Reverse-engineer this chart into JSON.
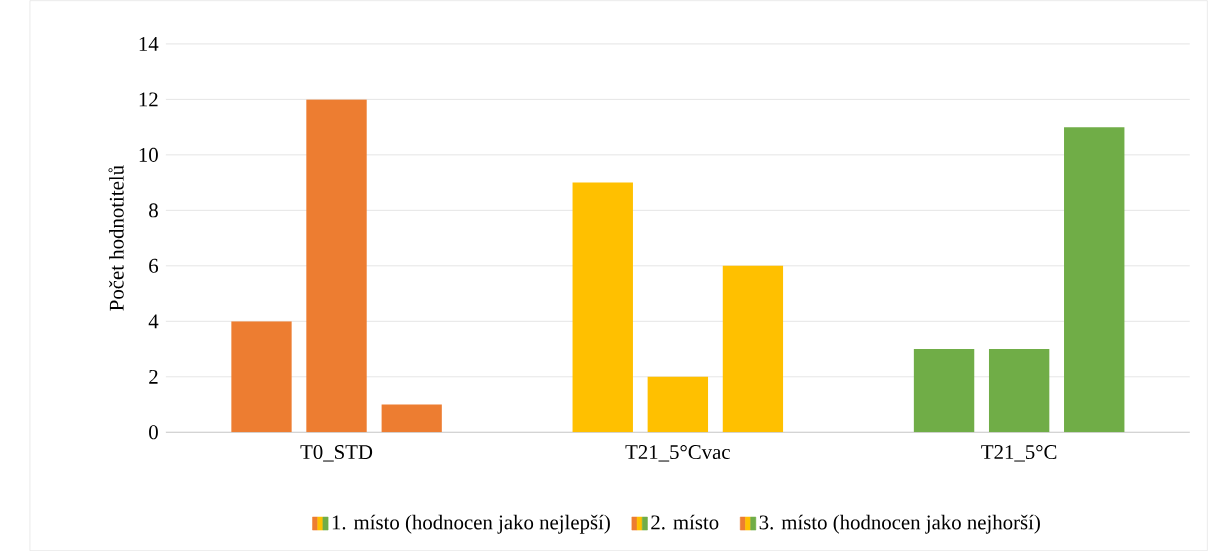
{
  "chart_data": {
    "type": "bar",
    "ylabel": "Počet hodnotitelů",
    "categories": [
      "T0_STD",
      "T21_5°Cvac",
      "T21_5°C"
    ],
    "series": [
      {
        "name": "1. místo (hodnocen jako nejlepší)",
        "colors": [
          "#ed7d31",
          "#ffc000",
          "#70ad47"
        ],
        "values": [
          4,
          9,
          3
        ]
      },
      {
        "name": "2. místo",
        "colors": [
          "#ed7d31",
          "#ffc000",
          "#70ad47"
        ],
        "values": [
          12,
          2,
          3
        ]
      },
      {
        "name": "3. místo (hodnocen jako nejhorší)",
        "colors": [
          "#ed7d31",
          "#ffc000",
          "#70ad47"
        ],
        "values": [
          1,
          6,
          11
        ]
      }
    ],
    "ylim": [
      0,
      14
    ],
    "yticks": [
      0,
      2,
      4,
      6,
      8,
      10,
      12,
      14
    ],
    "grid": "y",
    "legend": "bottom"
  }
}
